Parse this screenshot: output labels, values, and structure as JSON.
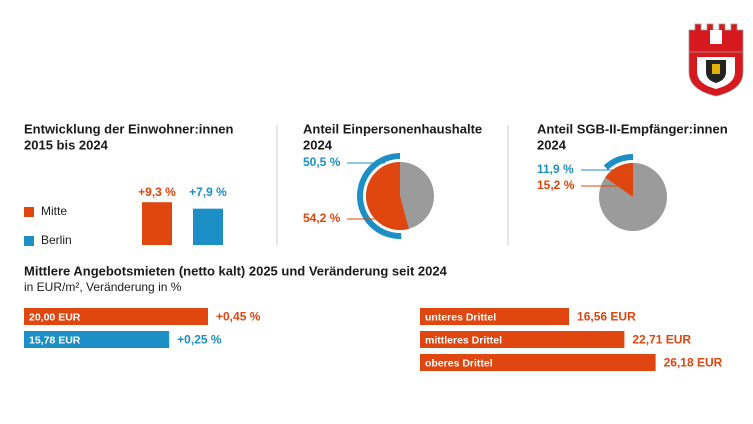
{
  "chart_data": [
    {
      "type": "bar",
      "title": "Entwicklung der Einwohner:innen",
      "subtitle": "2015 bis 2024",
      "series": [
        {
          "name": "Mitte",
          "color": "#e0460f",
          "values": [
            9.3
          ],
          "value_labels": [
            "+9,3 %"
          ]
        },
        {
          "name": "Berlin",
          "color": "#1c8fc6",
          "values": [
            7.9
          ],
          "value_labels": [
            "+7,9 %"
          ]
        }
      ]
    },
    {
      "type": "pie",
      "title": "Anteil Einpersonenhaushalte",
      "subtitle": "2024",
      "rest_color": "#9b9b9b",
      "series": [
        {
          "style": "ring",
          "color": "#1c8fc6",
          "values": [
            50.5
          ],
          "value_labels": [
            "50,5 %"
          ]
        },
        {
          "style": "pie",
          "color": "#e0460f",
          "values": [
            54.2
          ],
          "value_labels": [
            "54,2 %"
          ]
        }
      ]
    },
    {
      "type": "pie",
      "title": "Anteil SGB-II-Empfänger:innen",
      "subtitle": "2024",
      "rest_color": "#9b9b9b",
      "series": [
        {
          "style": "ring",
          "color": "#1c8fc6",
          "values": [
            11.9
          ],
          "value_labels": [
            "11,9 %"
          ]
        },
        {
          "style": "pie",
          "color": "#e0460f",
          "values": [
            15.2
          ],
          "value_labels": [
            "15,2 %"
          ]
        }
      ]
    },
    {
      "type": "bar",
      "orientation": "horizontal",
      "title": "Mittlere Angebotsmieten (netto kalt) 2025 und Veränderung seit 2024",
      "subtitle": "in EUR/m², Veränderung in %",
      "colors": [
        "#e0460f",
        "#1c8fc6"
      ],
      "values": [
        20.0,
        15.78
      ],
      "value_labels": [
        "20,00 EUR",
        "15,78 EUR"
      ],
      "changes": {
        "values": [
          0.45,
          0.25
        ],
        "value_labels": [
          "+0,45 %",
          "+0,25 %"
        ]
      }
    },
    {
      "type": "bar",
      "orientation": "horizontal",
      "color": "#e0460f",
      "categories": [
        "unteres Drittel",
        "mittleres Drittel",
        "oberes Drittel"
      ],
      "values": [
        16.56,
        22.71,
        26.18
      ],
      "value_labels": [
        "16,56 EUR",
        "22,71 EUR",
        "26,18 EUR"
      ]
    }
  ]
}
